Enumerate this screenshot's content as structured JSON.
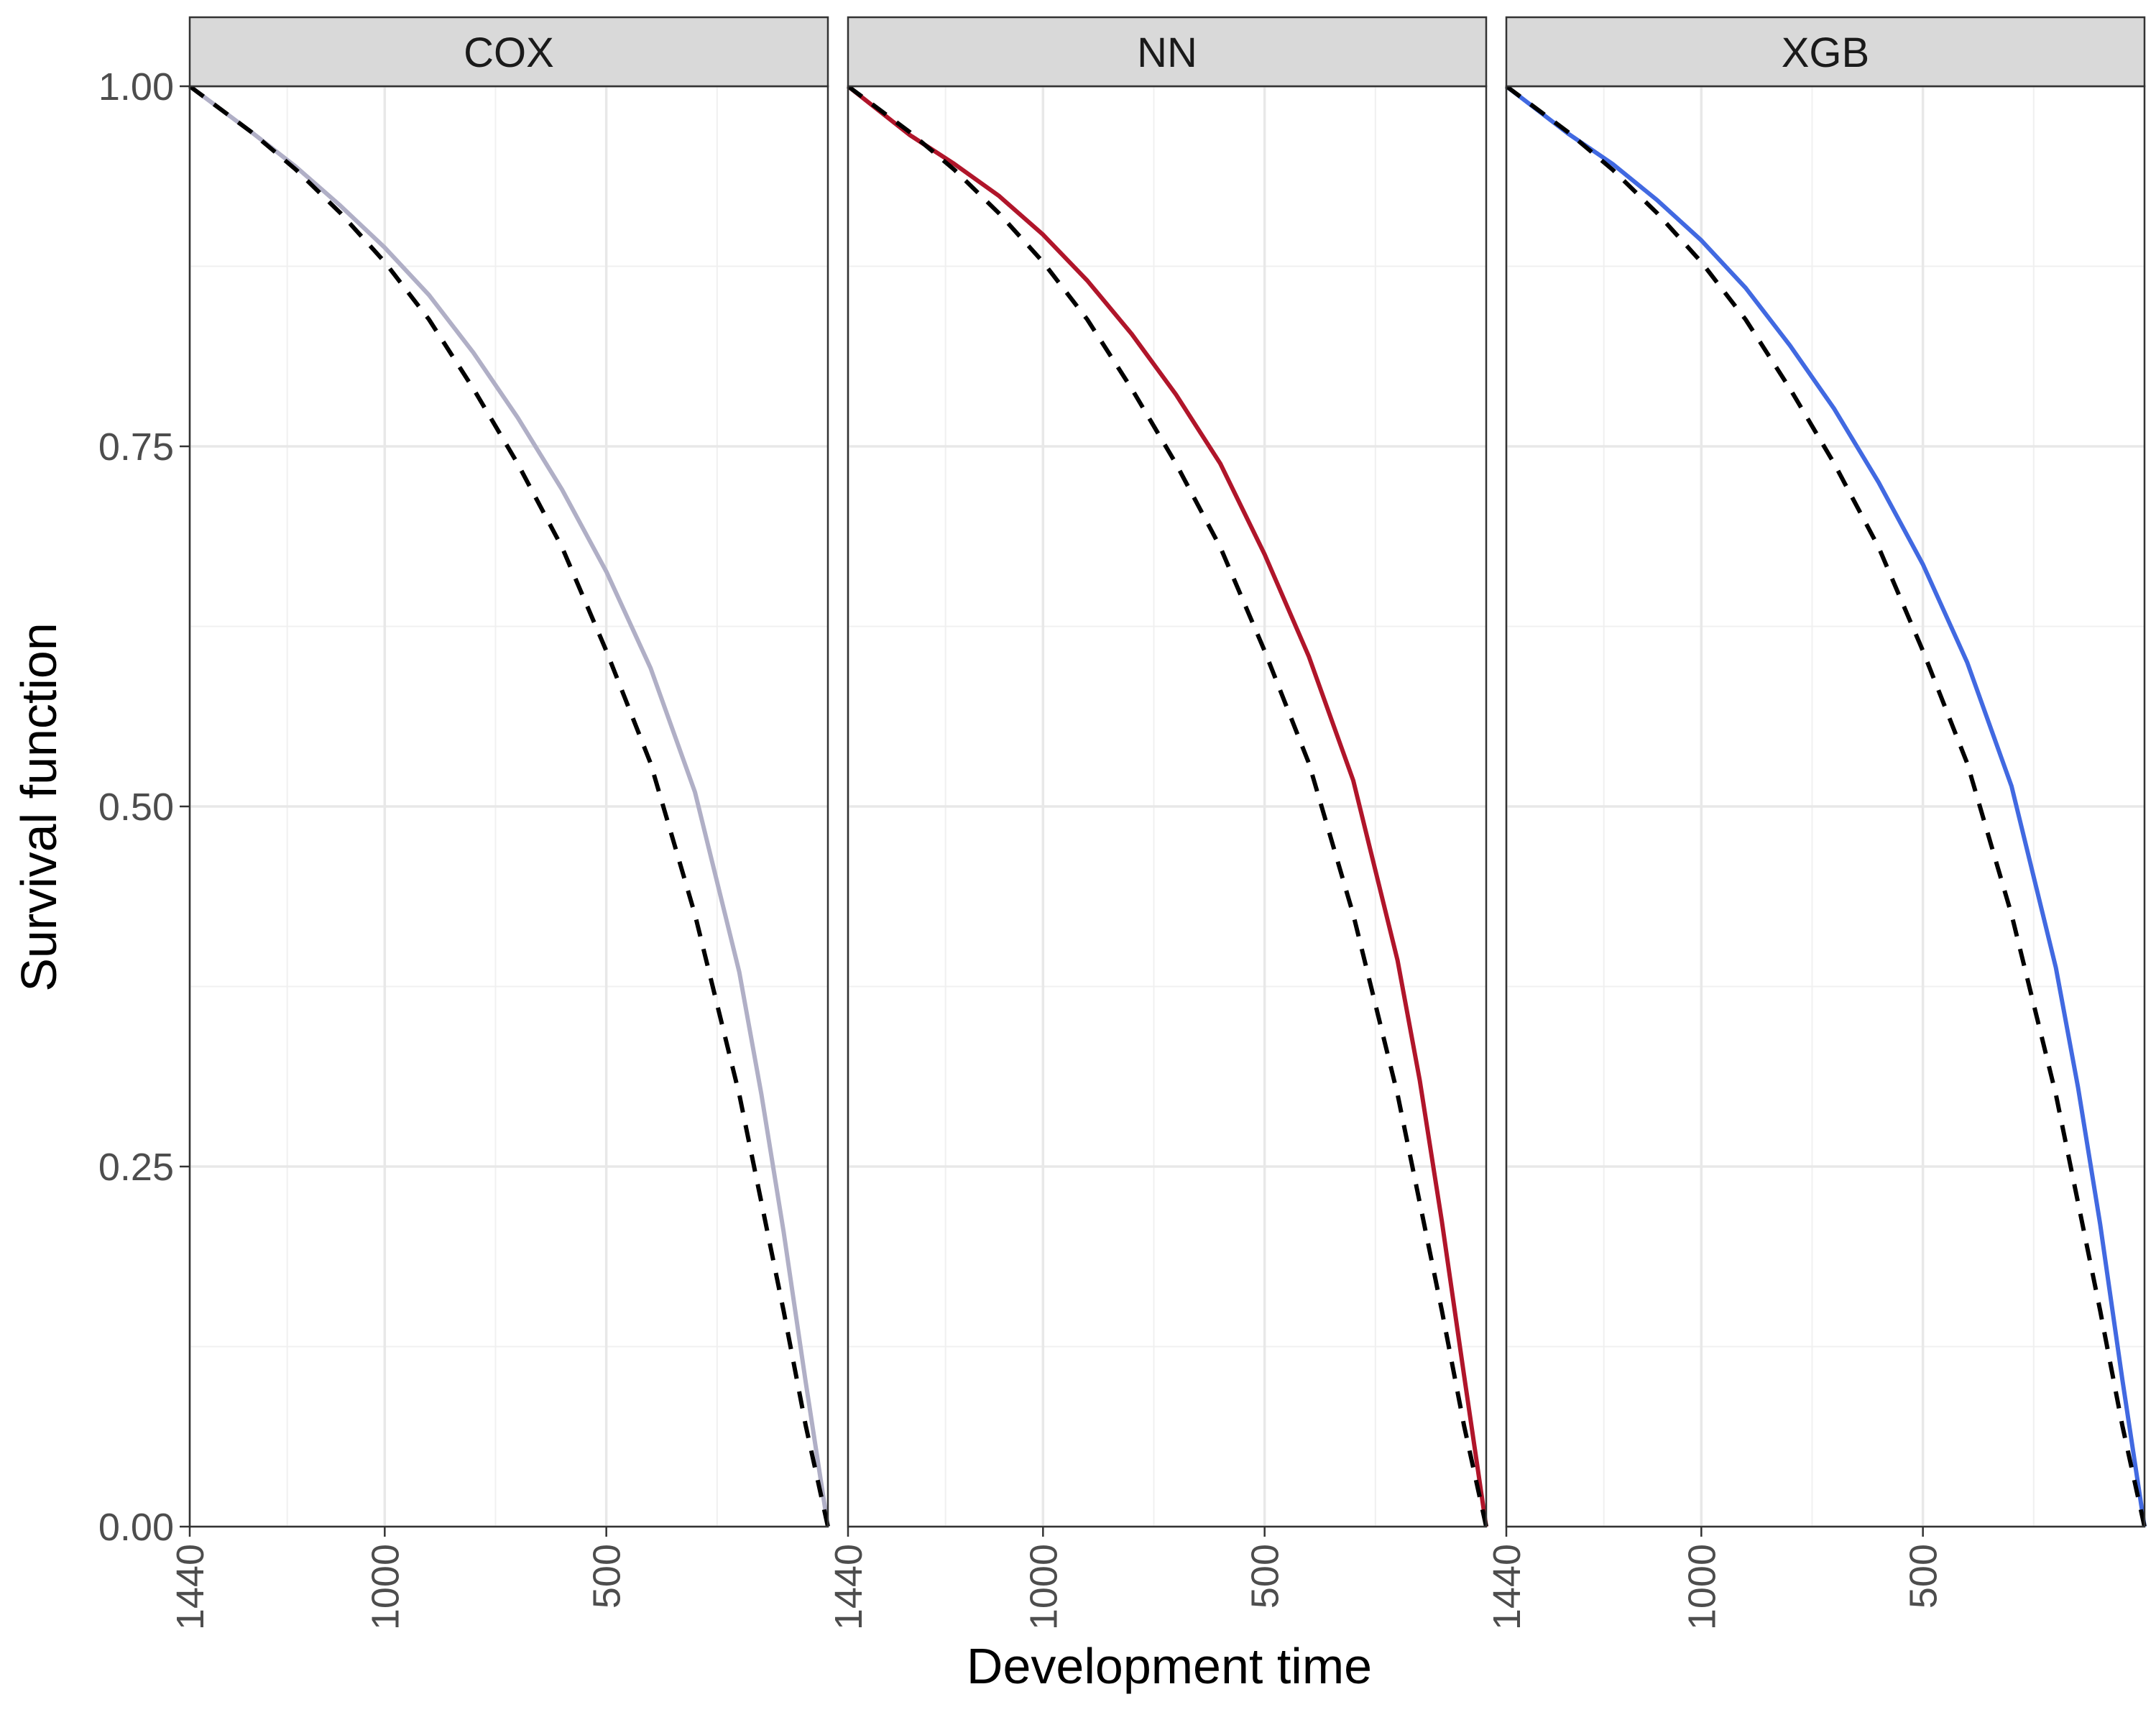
{
  "chart_data": {
    "type": "line",
    "ylabel": "Survival function",
    "xlabel": "Development time",
    "x_reversed": true,
    "xlim": [
      1440,
      0
    ],
    "ylim": [
      0,
      1
    ],
    "y_ticks": [
      0,
      0.25,
      0.5,
      0.75,
      1
    ],
    "y_tick_labels": [
      "0.00",
      "0.25",
      "0.50",
      "0.75",
      "1.00"
    ],
    "grid": true,
    "legend": "none",
    "reference_style": "dashed black line (same in every panel)",
    "reference_curve": {
      "x": [
        1440,
        1300,
        1200,
        1100,
        1000,
        900,
        800,
        700,
        600,
        500,
        400,
        300,
        200,
        150,
        100,
        50,
        0
      ],
      "y": [
        1.0,
        0.968,
        0.942,
        0.912,
        0.878,
        0.838,
        0.79,
        0.738,
        0.68,
        0.608,
        0.53,
        0.425,
        0.3,
        0.225,
        0.15,
        0.07,
        0.0
      ]
    },
    "panels": [
      {
        "label": "COX",
        "x_tick_values": [
          1440,
          1000,
          500
        ],
        "x_tick_labels": [
          "1440",
          "1000",
          "500"
        ],
        "color": "#b0afc6",
        "series": {
          "x": [
            1440,
            1300,
            1200,
            1100,
            1000,
            900,
            800,
            700,
            600,
            500,
            400,
            300,
            200,
            150,
            100,
            50,
            0
          ],
          "y": [
            1.0,
            0.968,
            0.944,
            0.917,
            0.888,
            0.855,
            0.815,
            0.77,
            0.72,
            0.663,
            0.596,
            0.51,
            0.385,
            0.3,
            0.205,
            0.1,
            0.0
          ]
        }
      },
      {
        "label": "NN",
        "x_tick_values": [
          1440,
          1000,
          500
        ],
        "x_tick_labels": [
          "1440",
          "1000",
          "500"
        ],
        "color": "#b0152a",
        "series": {
          "x": [
            1440,
            1300,
            1200,
            1100,
            1000,
            900,
            800,
            700,
            600,
            500,
            400,
            300,
            200,
            150,
            100,
            50,
            0
          ],
          "y": [
            1.0,
            0.966,
            0.946,
            0.924,
            0.897,
            0.865,
            0.828,
            0.786,
            0.738,
            0.675,
            0.604,
            0.518,
            0.393,
            0.31,
            0.212,
            0.105,
            0.0
          ]
        }
      },
      {
        "label": "XGB",
        "x_tick_values": [
          1440,
          1000,
          500
        ],
        "x_tick_labels": [
          "1440",
          "1000",
          "500"
        ],
        "color": "#4169e1",
        "series": {
          "x": [
            1440,
            1300,
            1200,
            1100,
            1000,
            900,
            800,
            700,
            600,
            500,
            400,
            300,
            200,
            150,
            100,
            50,
            0
          ],
          "y": [
            1.0,
            0.967,
            0.946,
            0.921,
            0.893,
            0.86,
            0.82,
            0.776,
            0.725,
            0.668,
            0.6,
            0.514,
            0.388,
            0.305,
            0.21,
            0.102,
            0.0
          ]
        }
      }
    ]
  }
}
